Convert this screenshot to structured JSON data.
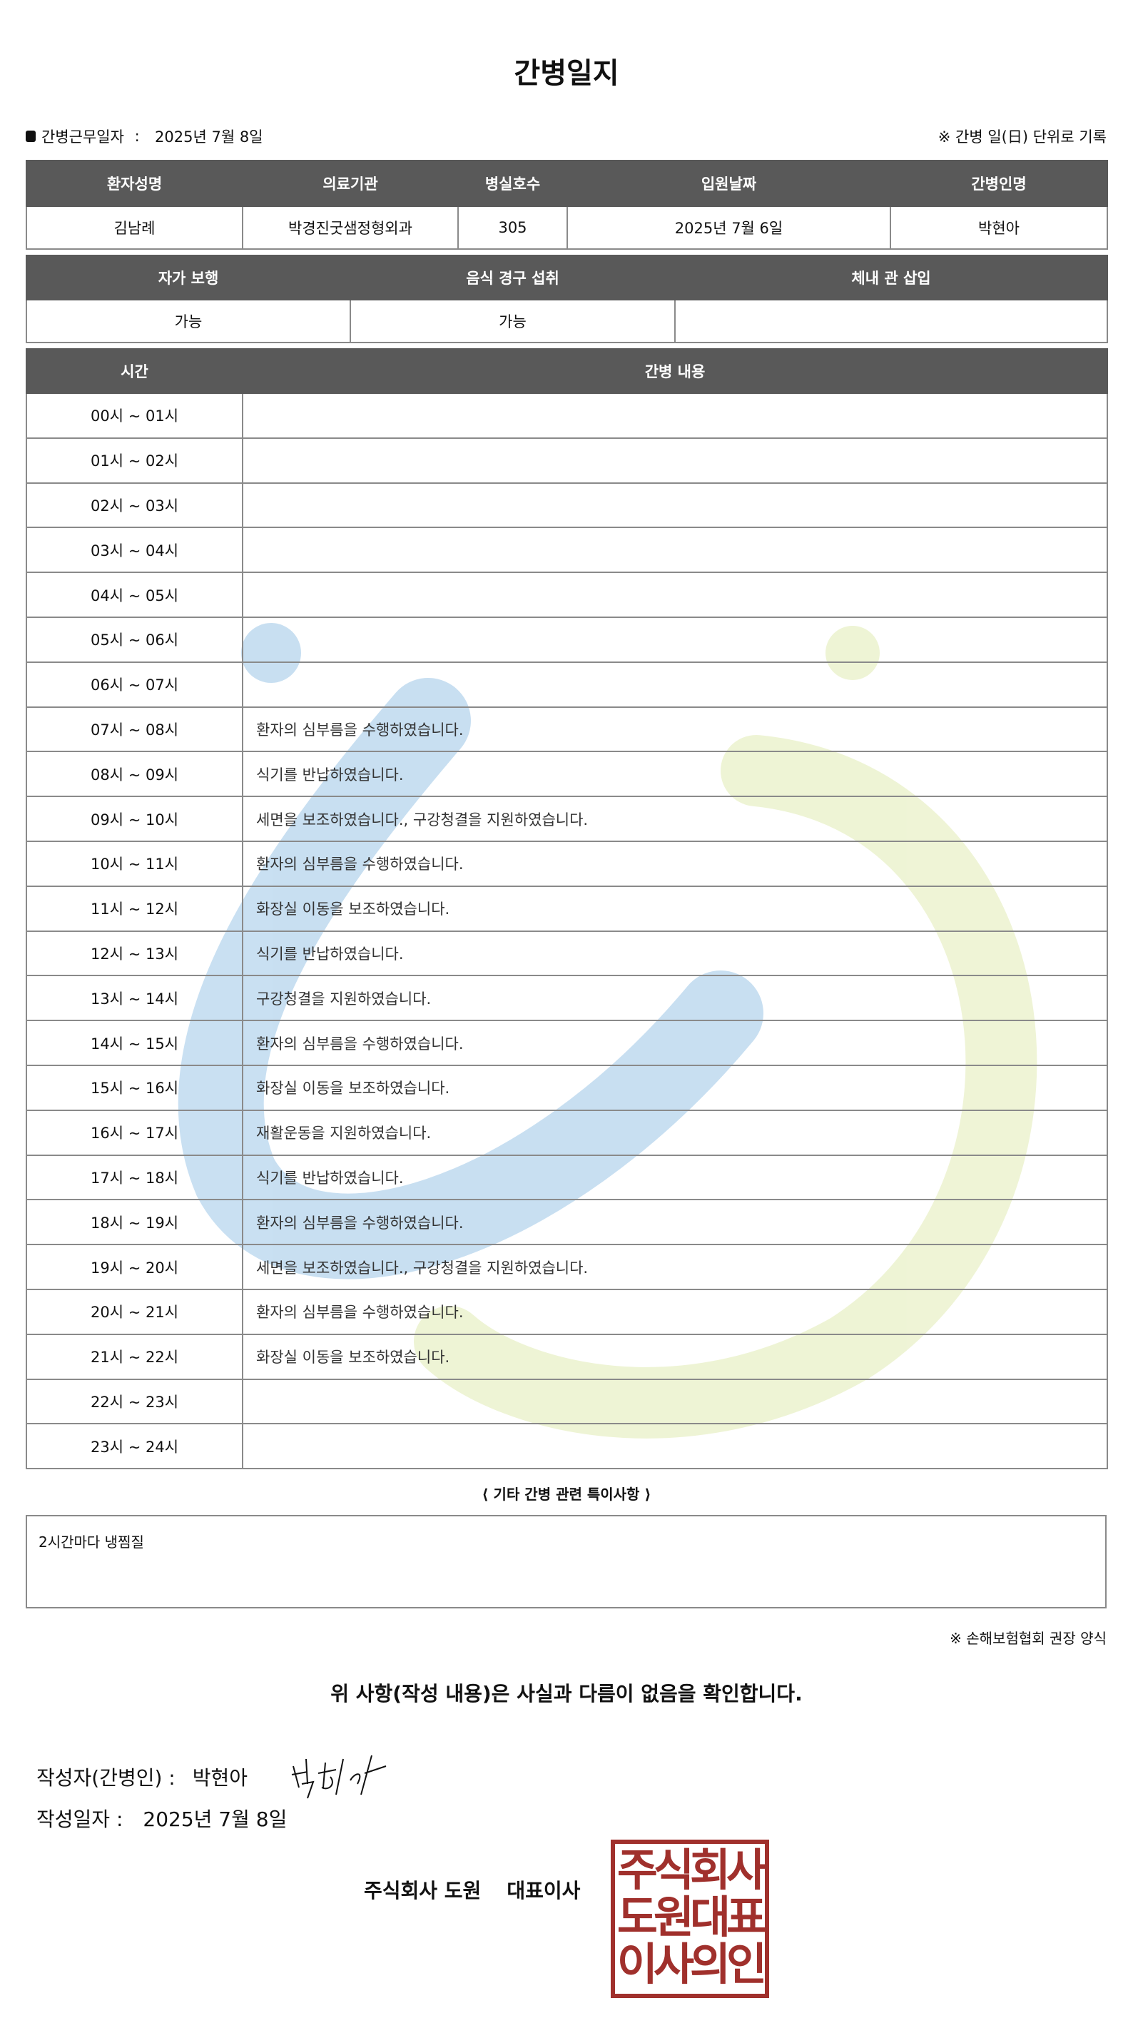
{
  "title": "간병일지",
  "work_date_label": "간병근무일자",
  "work_date": "2025년 7월 8일",
  "record_note": "※ 간병 일(日) 단위로 기록",
  "patient_table": {
    "headers": [
      "환자성명",
      "의료기관",
      "병실호수",
      "입원날짜",
      "간병인명"
    ],
    "values": [
      "김남례",
      "박경진굿샘정형외과",
      "305",
      "2025년 7월 6일",
      "박현아"
    ]
  },
  "status_table": {
    "headers": [
      "자가 보행",
      "음식 경구 섭취",
      "체내 관 삽입"
    ],
    "values": [
      "가능",
      "가능",
      ""
    ]
  },
  "care_table": {
    "headers": [
      "시간",
      "간병 내용"
    ],
    "rows": [
      {
        "time": "00시 ~ 01시",
        "content": ""
      },
      {
        "time": "01시 ~ 02시",
        "content": ""
      },
      {
        "time": "02시 ~ 03시",
        "content": ""
      },
      {
        "time": "03시 ~ 04시",
        "content": ""
      },
      {
        "time": "04시 ~ 05시",
        "content": ""
      },
      {
        "time": "05시 ~ 06시",
        "content": ""
      },
      {
        "time": "06시 ~ 07시",
        "content": ""
      },
      {
        "time": "07시 ~ 08시",
        "content": "환자의 심부름을 수행하였습니다."
      },
      {
        "time": "08시 ~ 09시",
        "content": "식기를 반납하였습니다."
      },
      {
        "time": "09시 ~ 10시",
        "content": "세면을 보조하였습니다., 구강청결을 지원하였습니다."
      },
      {
        "time": "10시 ~ 11시",
        "content": "환자의 심부름을 수행하였습니다."
      },
      {
        "time": "11시 ~ 12시",
        "content": "화장실 이동을 보조하였습니다."
      },
      {
        "time": "12시 ~ 13시",
        "content": "식기를 반납하였습니다."
      },
      {
        "time": "13시 ~ 14시",
        "content": "구강청결을 지원하였습니다."
      },
      {
        "time": "14시 ~ 15시",
        "content": "환자의 심부름을 수행하였습니다."
      },
      {
        "time": "15시 ~ 16시",
        "content": "화장실 이동을 보조하였습니다."
      },
      {
        "time": "16시 ~ 17시",
        "content": "재활운동을 지원하였습니다."
      },
      {
        "time": "17시 ~ 18시",
        "content": "식기를 반납하였습니다."
      },
      {
        "time": "18시 ~ 19시",
        "content": "환자의 심부름을 수행하였습니다."
      },
      {
        "time": "19시 ~ 20시",
        "content": "세면을 보조하였습니다., 구강청결을 지원하였습니다."
      },
      {
        "time": "20시 ~ 21시",
        "content": "환자의 심부름을 수행하였습니다."
      },
      {
        "time": "21시 ~ 22시",
        "content": "화장실 이동을 보조하였습니다."
      },
      {
        "time": "22시 ~ 23시",
        "content": ""
      },
      {
        "time": "23시 ~ 24시",
        "content": ""
      }
    ]
  },
  "notes_title": "⟨ 기타 간병 관련 특이사항 ⟩",
  "notes": "2시간마다 냉찜질",
  "footnote": "※ 손해보험협회 권장 양식",
  "confirm_text": "위 사항(작성 내용)은 사실과 다름이 없음을 확인합니다.",
  "writer_label": "작성자(간병인) :",
  "writer_name": "박현아",
  "signature": "박현아",
  "date_label": "작성일자 :",
  "date_value": "2025년 7월 8일",
  "company": "주식회사 도원",
  "ceo_label": "대표이사",
  "stamp_lines": [
    "주식회사",
    "도원대표",
    "이사의인"
  ],
  "colors": {
    "header_bg": "#595959",
    "stamp": "#a0302c",
    "watermark_blue": "#3d8fcf",
    "watermark_green": "#c6d86a"
  }
}
